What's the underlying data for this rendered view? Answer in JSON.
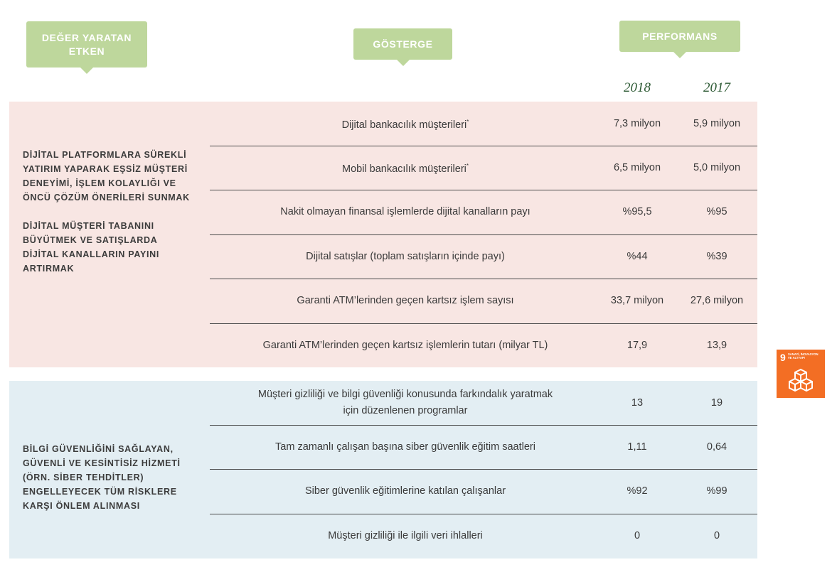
{
  "headers": {
    "driver": [
      "DEĞER YARATAN",
      "ETKEN"
    ],
    "indicator": "GÖSTERGE",
    "performance": "PERFORMANS"
  },
  "years": [
    "2018",
    "2017"
  ],
  "sections": [
    {
      "driver": [
        [
          "DİJİTAL PLATFORMLARA SÜREKLİ",
          "YATIRIM YAPARAK EŞSİZ MÜŞTERİ",
          "DENEYİMİ, İŞLEM KOLAYLIĞI VE",
          "ÖNCÜ ÇÖZÜM ÖNERİLERİ SUNMAK"
        ],
        [
          "DİJİTAL MÜŞTERİ TABANINI",
          "BÜYÜTMEK VE SATIŞLARDA",
          "DİJİTAL KANALLARIN PAYINI",
          "ARTIRMAK"
        ]
      ],
      "rows": [
        {
          "indicator": "Dijital bankacılık müşterileri",
          "note": "*",
          "values": [
            "7,3 milyon",
            "5,9 milyon"
          ]
        },
        {
          "indicator": "Mobil bankacılık müşterileri",
          "note": "*",
          "values": [
            "6,5 milyon",
            "5,0 milyon"
          ]
        },
        {
          "indicator": "Nakit olmayan finansal işlemlerde dijital kanalların payı",
          "values": [
            "%95,5",
            "%95"
          ]
        },
        {
          "indicator": "Dijital satışlar (toplam satışların içinde payı)",
          "values": [
            "%44",
            "%39"
          ]
        },
        {
          "indicator": "Garanti ATM’lerinden geçen kartsız işlem sayısı",
          "values": [
            "33,7 milyon",
            "27,6 milyon"
          ]
        },
        {
          "indicator": "Garanti ATM’lerinden geçen kartsız işlemlerin tutarı (milyar TL)",
          "values": [
            "17,9",
            "13,9"
          ]
        }
      ]
    },
    {
      "driver": [
        [
          "BİLGİ GÜVENLİĞİNİ SAĞLAYAN,",
          "GÜVENLİ VE KESİNTİSİZ HİZMETİ",
          "(ÖRN. SİBER TEHDİTLER)",
          "ENGELLEYECEK TÜM RİSKLERE",
          "KARŞI ÖNLEM ALINMASI"
        ]
      ],
      "rows": [
        {
          "indicator": "Müşteri gizliliği ve bilgi güvenliği konusunda farkındalık yaratmak için düzenlenen programlar",
          "values": [
            "13",
            "19"
          ]
        },
        {
          "indicator": "Tam zamanlı çalışan başına siber güvenlik eğitim saatleri",
          "values": [
            "1,11",
            "0,64"
          ]
        },
        {
          "indicator": "Siber güvenlik eğitimlerine katılan çalışanlar",
          "values": [
            "%92",
            "%99"
          ]
        },
        {
          "indicator": "Müşteri gizliliği ile ilgili veri ihlalleri",
          "values": [
            "0",
            "0"
          ]
        }
      ]
    }
  ],
  "badge": {
    "number": "9",
    "label": [
      "SANAYİ, İNOVASYON",
      "VE ALTYAPI"
    ]
  }
}
